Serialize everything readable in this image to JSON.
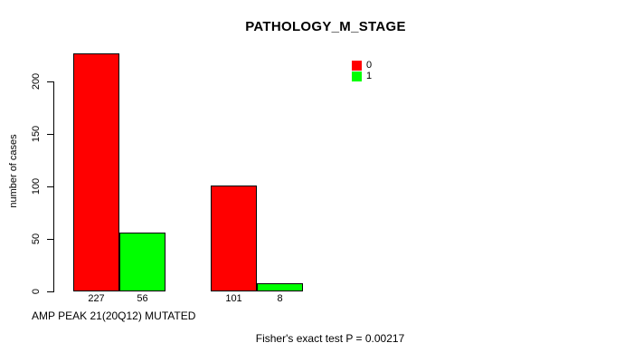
{
  "chart_data": {
    "type": "bar",
    "title": "PATHOLOGY_M_STAGE",
    "ylabel": "number of cases",
    "xlabel": "AMP PEAK 21(20Q12) MUTATED",
    "annotation": "Fisher's exact test P = 0.00217",
    "ylim": [
      0,
      200
    ],
    "yticks": [
      0,
      50,
      100,
      150,
      200
    ],
    "grid": false,
    "legend_position": "top-right-inside",
    "legend": [
      {
        "label": "0",
        "color": "#ff0000"
      },
      {
        "label": "1",
        "color": "#00ff00"
      }
    ],
    "series": [
      {
        "name": "0",
        "color": "#ff0000",
        "values": [
          227,
          101
        ]
      },
      {
        "name": "1",
        "color": "#00ff00",
        "values": [
          56,
          8
        ]
      }
    ],
    "bar_value_labels": [
      "227",
      "56",
      "101",
      "8"
    ],
    "bar_border_color": "#000000"
  },
  "colors": {
    "background": "#ffffff",
    "text": "#000000",
    "axis": "#000000"
  }
}
